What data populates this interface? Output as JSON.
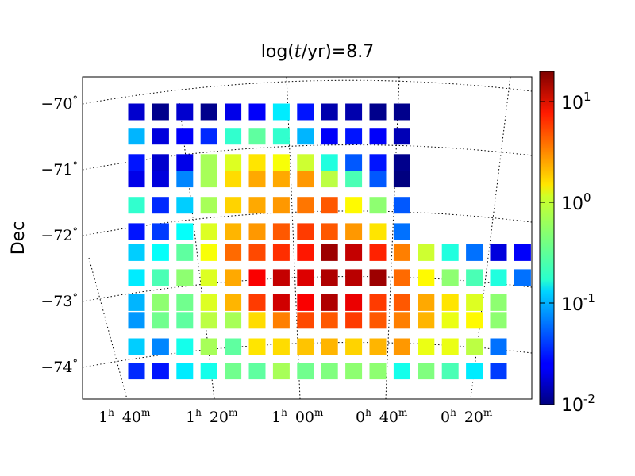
{
  "chart_data": {
    "type": "heatmap",
    "title_prefix": "log(",
    "title_italic": "t",
    "title_suffix": "/yr)=8.7",
    "ylabel": "Dec",
    "xlabel": "",
    "y_ticks": [
      {
        "deg": "−70",
        "unit": "°",
        "value": -70
      },
      {
        "deg": "−71",
        "unit": "°",
        "value": -71
      },
      {
        "deg": "−72",
        "unit": "°",
        "value": -72
      },
      {
        "deg": "−73",
        "unit": "°",
        "value": -73
      },
      {
        "deg": "−74",
        "unit": "°",
        "value": -74
      }
    ],
    "x_ticks": [
      {
        "h": "1",
        "m": "40",
        "value": 1.6667
      },
      {
        "h": "1",
        "m": "20",
        "value": 1.3333
      },
      {
        "h": "1",
        "m": "00",
        "value": 1.0
      },
      {
        "h": "0",
        "m": "40",
        "value": 0.6667
      },
      {
        "h": "0",
        "m": "20",
        "value": 0.3333
      }
    ],
    "ra_hour_sup": "h",
    "ra_min_sup": "m",
    "colorbar": {
      "scale": "log",
      "range": [
        0.01,
        20
      ],
      "ticks": [
        {
          "base": "10",
          "exp": "1",
          "value": 10
        },
        {
          "base": "10",
          "exp": "0",
          "value": 1
        },
        {
          "base": "10",
          "exp": "-1",
          "value": 0.1
        },
        {
          "base": "10",
          "exp": "-2",
          "value": 0.01
        }
      ]
    },
    "grid": true,
    "legend": "none",
    "colormap": "jet",
    "columns_ra_hours": [
      1.7333,
      1.6667,
      1.6,
      1.5333,
      1.4667,
      1.4,
      1.3333,
      1.2667,
      1.2,
      1.1333,
      1.0667,
      1.0,
      0.9333,
      0.8667,
      0.8,
      0.7333,
      0.6667
    ],
    "rows_dec": [
      {
        "dec": -70.18,
        "start_col": 0,
        "values": [
          0.018,
          0.011,
          0.018,
          0.011,
          0.022,
          0.025,
          0.15,
          0.03,
          0.014,
          0.014,
          0.011,
          0.011
        ]
      },
      {
        "dec": -70.55,
        "start_col": 0,
        "values": [
          0.1,
          0.02,
          0.025,
          0.035,
          0.25,
          0.35,
          0.25,
          0.1,
          0.025,
          0.03,
          0.025,
          0.015
        ]
      },
      {
        "dec": -70.95,
        "start_col": 0,
        "values": [
          0.03,
          0.018,
          0.022,
          0.6,
          0.9,
          1.4,
          1.1,
          0.8,
          0.22,
          0.05,
          0.03,
          0.011
        ]
      },
      {
        "dec": -71.2,
        "start_col": 0,
        "values": [
          0.022,
          0.02,
          0.07,
          0.6,
          1.5,
          2.2,
          2.2,
          2.5,
          0.7,
          0.3,
          0.05,
          0.01
        ]
      },
      {
        "dec": -71.6,
        "start_col": 0,
        "values": [
          0.25,
          0.035,
          0.12,
          0.6,
          1.6,
          2.2,
          2.5,
          3.2,
          4.0,
          1.2,
          0.5,
          0.05
        ]
      },
      {
        "dec": -72.0,
        "start_col": 0,
        "values": [
          0.03,
          0.04,
          0.18,
          0.9,
          2.0,
          2.5,
          4.0,
          5.0,
          4.0,
          2.5,
          1.4,
          0.06
        ]
      },
      {
        "dec": -72.32,
        "start_col": 0,
        "values": [
          0.12,
          0.18,
          0.35,
          1.1,
          3.5,
          4.5,
          5.5,
          6.5,
          16,
          12,
          6.0,
          3.0,
          0.8,
          0.22,
          0.06,
          0.02,
          0.025
        ]
      },
      {
        "dec": -72.7,
        "start_col": 0,
        "values": [
          0.15,
          0.3,
          0.5,
          0.9,
          2.2,
          8.0,
          12,
          10,
          14,
          13,
          16,
          3.5,
          1.2,
          0.5,
          0.3,
          0.22,
          0.06
        ]
      },
      {
        "dec": -73.08,
        "start_col": 0,
        "values": [
          0.1,
          0.5,
          0.4,
          0.9,
          2.0,
          5.0,
          11,
          8.0,
          14,
          9.0,
          5.0,
          4.0,
          2.2,
          1.4,
          0.9,
          0.5
        ]
      },
      {
        "dec": -73.35,
        "start_col": 0,
        "values": [
          0.08,
          0.4,
          0.35,
          0.7,
          0.6,
          1.5,
          3.0,
          4.5,
          4.0,
          5.0,
          4.0,
          3.0,
          2.0,
          1.0,
          1.2,
          0.5
        ]
      },
      {
        "dec": -73.75,
        "start_col": 0,
        "values": [
          0.12,
          0.07,
          0.2,
          0.6,
          0.35,
          1.4,
          1.5,
          1.8,
          2.0,
          1.6,
          2.0,
          2.5,
          1.0,
          1.0,
          0.7,
          0.06
        ]
      },
      {
        "dec": -74.12,
        "start_col": 0,
        "values": [
          0.035,
          0.03,
          0.15,
          0.2,
          0.4,
          0.35,
          0.6,
          0.4,
          0.45,
          0.5,
          0.5,
          0.2,
          0.45,
          0.3,
          0.15,
          0.04
        ]
      }
    ]
  }
}
